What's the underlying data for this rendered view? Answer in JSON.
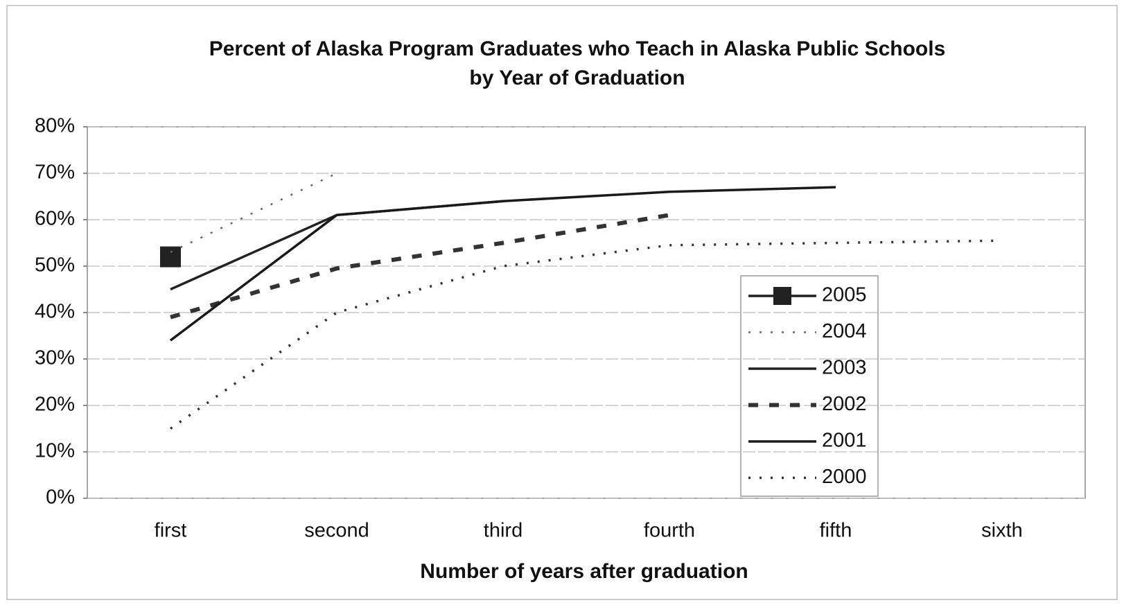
{
  "chart_data": {
    "type": "line",
    "title": "Percent of Alaska Program Graduates who Teach in Alaska Public Schools",
    "subtitle": "by Year of Graduation",
    "x_label": "Number of years after graduation",
    "categories": [
      "first",
      "second",
      "third",
      "fourth",
      "fifth",
      "sixth"
    ],
    "ylim": [
      0,
      80
    ],
    "yticks": [
      {
        "value": 0,
        "label": "0%"
      },
      {
        "value": 10,
        "label": "10%"
      },
      {
        "value": 20,
        "label": "20%"
      },
      {
        "value": 30,
        "label": "30%"
      },
      {
        "value": 40,
        "label": "40%"
      },
      {
        "value": 50,
        "label": "50%"
      },
      {
        "value": 60,
        "label": "60%"
      },
      {
        "value": 70,
        "label": "70%"
      },
      {
        "value": 80,
        "label": "80%"
      }
    ],
    "grid": true,
    "legend": "right",
    "series": [
      {
        "name": "2005",
        "color": "#222222",
        "line_style": "solid",
        "marker": "square",
        "values": [
          52,
          null,
          null,
          null,
          null,
          null
        ]
      },
      {
        "name": "2004",
        "color": "#666666",
        "line_style": "dotted",
        "values": [
          53,
          70,
          null,
          null,
          null,
          null
        ]
      },
      {
        "name": "2003",
        "color": "#222222",
        "line_style": "solid",
        "values": [
          45,
          61,
          64,
          null,
          null,
          null
        ]
      },
      {
        "name": "2002",
        "color": "#333333",
        "line_style": "dashed",
        "values": [
          39,
          49.5,
          55,
          61,
          null,
          null
        ]
      },
      {
        "name": "2001",
        "color": "#1a1a1a",
        "line_style": "solid",
        "values": [
          34,
          61,
          64,
          66,
          67,
          null
        ]
      },
      {
        "name": "2000",
        "color": "#333333",
        "line_style": "dotted",
        "values": [
          15,
          40,
          50,
          54.5,
          55,
          55.5
        ]
      }
    ]
  }
}
